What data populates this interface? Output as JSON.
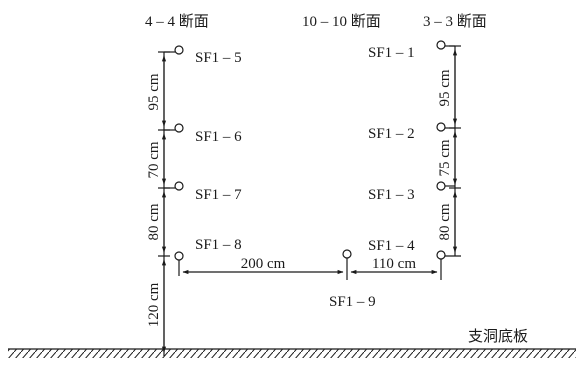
{
  "section_labels": {
    "s44": "4 – 4 断面",
    "s1010": "10 – 10 断面",
    "s33": "3 – 3 断面"
  },
  "sensors": {
    "sf1_1": "SF1 – 1",
    "sf1_2": "SF1 – 2",
    "sf1_3": "SF1 – 3",
    "sf1_4": "SF1 – 4",
    "sf1_5": "SF1 – 5",
    "sf1_6": "SF1 – 6",
    "sf1_7": "SF1 – 7",
    "sf1_8": "SF1 – 8",
    "sf1_9": "SF1 – 9"
  },
  "dimensions": {
    "left_95": "95 cm",
    "left_70": "70 cm",
    "left_80": "80 cm",
    "left_120": "120 cm",
    "right_95": "95 cm",
    "right_75": "75 cm",
    "right_80": "80 cm",
    "bottom_200": "200 cm",
    "bottom_110": "110 cm"
  },
  "floor_label": "支洞底板"
}
